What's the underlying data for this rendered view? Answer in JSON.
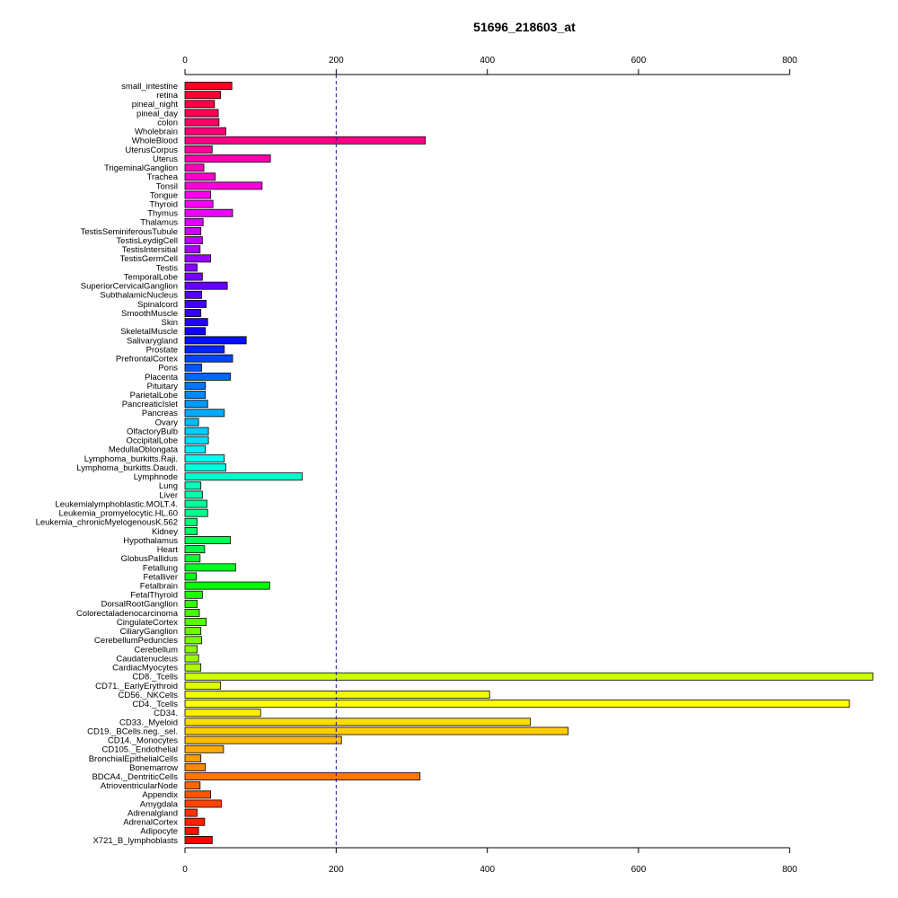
{
  "chart_data": {
    "type": "bar",
    "orientation": "horizontal",
    "title": "51696_218603_at",
    "xlabel": "",
    "ylabel": "",
    "xlim": [
      0,
      910
    ],
    "x_ticks": [
      0,
      200,
      400,
      600,
      800
    ],
    "x_ticks_positions": [
      "top",
      "bottom"
    ],
    "reference_line": {
      "x": 200,
      "style": "dashed",
      "color": "#1a1a8c"
    },
    "grid": false,
    "legend": "none",
    "categories": [
      "small_intestine",
      "retina",
      "pineal_night",
      "pineal_day",
      "colon",
      "Wholebrain",
      "WholeBlood",
      "UterusCorpus",
      "Uterus",
      "TrigeminalGanglion",
      "Trachea",
      "Tonsil",
      "Tongue",
      "Thyroid",
      "Thymus",
      "Thalamus",
      "TestisSeminiferousTubule",
      "TestisLeydigCell",
      "TestisIntersitial",
      "TestisGermCell",
      "Testis",
      "TemporalLobe",
      "SuperiorCervicalGanglion",
      "SubthalamicNucleus",
      "Spinalcord",
      "SmoothMuscle",
      "Skin",
      "SkeletalMuscle",
      "Salivarygland",
      "Prostate",
      "PrefrontalCortex",
      "Pons",
      "Placenta",
      "Pituitary",
      "ParietalLobe",
      "PancreaticIslet",
      "Pancreas",
      "Ovary",
      "OlfactoryBulb",
      "OccipitalLobe",
      "MedullaOblongata",
      "Lymphoma_burkitts.Raji.",
      "Lymphoma_burkitts.Daudi.",
      "Lymphnode",
      "Lung",
      "Liver",
      "Leukemialymphoblastic.MOLT.4.",
      "Leukemia_promyelocytic.HL.60",
      "Leukemia_chronicMyelogenousK.562",
      "Kidney",
      "Hypothalamus",
      "Heart",
      "GlobusPallidus",
      "Fetallung",
      "Fetalliver",
      "Fetalbrain",
      "FetalThyroid",
      "DorsalRootGanglion",
      "Colorectaladenocarcinoma",
      "CingulateCortex",
      "CiliaryGanglion",
      "CerebellumPeduncles",
      "Cerebellum",
      "Caudatenucleus",
      "CardiacMyocytes",
      "CD8._Tcells",
      "CD71._EarlyErythroid",
      "CD56._NKCells",
      "CD4._Tcells",
      "CD34.",
      "CD33._Myeloid",
      "CD19._BCells.neg._sel.",
      "CD14._Monocytes",
      "CD105._Endothelial",
      "BronchialEpithelialCells",
      "Bonemarrow",
      "BDCA4._DentriticCells",
      "AtrioventricularNode",
      "Appendix",
      "Amygdala",
      "Adrenalgland",
      "AdrenalCortex",
      "Adipocyte",
      "X721_B_lymphoblasts"
    ],
    "values": [
      62,
      47,
      39,
      44,
      45,
      54,
      318,
      36,
      113,
      25,
      40,
      102,
      34,
      37,
      63,
      24,
      21,
      23,
      20,
      34,
      16,
      23,
      56,
      22,
      28,
      21,
      30,
      27,
      81,
      52,
      63,
      22,
      60,
      27,
      27,
      30,
      52,
      18,
      31,
      31,
      27,
      52,
      54,
      155,
      21,
      23,
      29,
      30,
      16,
      16,
      60,
      26,
      20,
      67,
      15,
      112,
      23,
      16,
      19,
      28,
      21,
      22,
      16,
      18,
      21,
      910,
      47,
      403,
      879,
      100,
      457,
      507,
      207,
      51,
      21,
      27,
      311,
      20,
      34,
      48,
      16,
      26,
      18,
      36
    ],
    "colors": [
      "#ff0022",
      "#ff0033",
      "#ff0044",
      "#ff0055",
      "#ff0066",
      "#ff0077",
      "#ff0088",
      "#ff0099",
      "#ff00aa",
      "#ff00bb",
      "#ff00cc",
      "#ff00dd",
      "#ff00ee",
      "#ff00ff",
      "#ee00ff",
      "#dd00ff",
      "#cc00ff",
      "#bb00ff",
      "#aa00ff",
      "#9900ff",
      "#8800ff",
      "#7700ff",
      "#6600ff",
      "#5500ff",
      "#4400ff",
      "#3300ff",
      "#2200ff",
      "#1100ff",
      "#0011ff",
      "#0022ff",
      "#0044ff",
      "#0055ff",
      "#0066ff",
      "#0077ff",
      "#0088ff",
      "#0099ff",
      "#00aaff",
      "#00bbff",
      "#00ccff",
      "#00ddff",
      "#00eeff",
      "#00ffee",
      "#00ffdd",
      "#00ffcc",
      "#00ffbb",
      "#00ffaa",
      "#00ff99",
      "#00ff88",
      "#00ff77",
      "#00ff66",
      "#00ff55",
      "#00ff44",
      "#00ff33",
      "#00ff22",
      "#00ff11",
      "#00ff00",
      "#22ff00",
      "#33ff00",
      "#44ff00",
      "#55ff00",
      "#66ff00",
      "#77ff00",
      "#88ff00",
      "#99ff00",
      "#aaff00",
      "#ccff00",
      "#ddff00",
      "#eeff00",
      "#ffff00",
      "#ffee00",
      "#ffdd00",
      "#ffcc00",
      "#ffbb00",
      "#ffaa00",
      "#ff9900",
      "#ff8800",
      "#ff7700",
      "#ff6600",
      "#ff5500",
      "#ff4400",
      "#ff3300",
      "#ff2200",
      "#ff1100",
      "#ff0000"
    ]
  }
}
